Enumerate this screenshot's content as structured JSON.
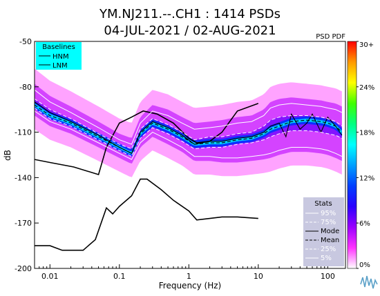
{
  "chart_data": {
    "type": "heatmap",
    "title_line1": "YM.NJ211.--.CH1 : 1414 PSDs",
    "title_line2": "04-JUL-2021 / 02-AUG-2021",
    "xlabel": "Frequency (Hz)",
    "ylabel": "dB",
    "x_scale": "log",
    "xlim": [
      0.006,
      180
    ],
    "ylim": [
      -200,
      -50
    ],
    "x_ticks": [
      {
        "value": 0.01,
        "label": "0.01"
      },
      {
        "value": 0.1,
        "label": "0.1"
      },
      {
        "value": 1,
        "label": "1"
      },
      {
        "value": 10,
        "label": "10"
      },
      {
        "value": 100,
        "label": "100"
      }
    ],
    "y_ticks": [
      {
        "value": -50,
        "label": "-50"
      },
      {
        "value": -80,
        "label": "-80"
      },
      {
        "value": -110,
        "label": "-110"
      },
      {
        "value": -140,
        "label": "-140"
      },
      {
        "value": -170,
        "label": "-170"
      },
      {
        "value": -200,
        "label": "-200"
      }
    ],
    "colorbar": {
      "title": "PSD PDF",
      "range": [
        0,
        30
      ],
      "ticks": [
        {
          "value": 30,
          "label": "30+"
        },
        {
          "value": 24,
          "label": "24%"
        },
        {
          "value": 18,
          "label": "18%"
        },
        {
          "value": 12,
          "label": "12%"
        },
        {
          "value": 6,
          "label": "6%"
        },
        {
          "value": 0,
          "label": "0%"
        }
      ],
      "colors": [
        "#ffffff",
        "#ff33ff",
        "#9a00ff",
        "#2a00ff",
        "#0040ff",
        "#00a0ff",
        "#00ffff",
        "#00ff80",
        "#40ff00",
        "#ffff00",
        "#ff9900",
        "#ff0000"
      ]
    },
    "baselines_legend": {
      "title": "Baselines",
      "entries": [
        "HNM",
        "LNM"
      ],
      "background": "#00ffff"
    },
    "stats_legend": {
      "title": "Stats",
      "entries": [
        "95%",
        "75%",
        "Mode",
        "Mean",
        "25%",
        "5%"
      ],
      "background": "#c8c8e0"
    },
    "series": [
      {
        "name": "HNM",
        "x": [
          0.006,
          0.01,
          0.022,
          0.05,
          0.065,
          0.1,
          0.15,
          0.22,
          0.35,
          0.6,
          1.0,
          1.3,
          2.0,
          3.0,
          5.0,
          10.0
        ],
        "y": [
          -128,
          -130,
          -133,
          -138,
          -120,
          -104,
          -100,
          -96,
          -98,
          -104,
          -114,
          -117,
          -116,
          -110,
          -96,
          -91
        ]
      },
      {
        "name": "LNM",
        "x": [
          0.006,
          0.01,
          0.015,
          0.03,
          0.045,
          0.065,
          0.08,
          0.1,
          0.15,
          0.2,
          0.25,
          0.4,
          0.6,
          1.0,
          1.3,
          2.0,
          3.0,
          5.0,
          10.0
        ],
        "y": [
          -185,
          -185,
          -188,
          -188,
          -181,
          -160,
          -164,
          -159,
          -152,
          -141,
          -141,
          -148,
          -155,
          -162,
          -168,
          -167,
          -166,
          -166,
          -167
        ]
      },
      {
        "name": "Mode",
        "x": [
          0.006,
          0.01,
          0.02,
          0.05,
          0.1,
          0.15,
          0.2,
          0.3,
          0.5,
          0.8,
          1.2,
          2,
          3,
          5,
          8,
          12,
          15,
          20,
          25,
          30,
          40,
          50,
          60,
          80,
          100,
          130,
          160
        ],
        "y": [
          -90,
          -97,
          -103,
          -112,
          -120,
          -124,
          -110,
          -103,
          -107,
          -112,
          -118,
          -116,
          -116,
          -114,
          -113,
          -110,
          -106,
          -104,
          -113,
          -98,
          -108,
          -104,
          -98,
          -110,
          -100,
          -106,
          -112
        ]
      },
      {
        "name": "Mean",
        "x": [
          0.006,
          0.01,
          0.02,
          0.05,
          0.1,
          0.15,
          0.2,
          0.3,
          0.5,
          0.8,
          1.2,
          2,
          3,
          5,
          8,
          12,
          15,
          20,
          30,
          50,
          80,
          100,
          130,
          160
        ],
        "y": [
          -92,
          -99,
          -104,
          -113,
          -120,
          -124,
          -111,
          -104,
          -108,
          -113,
          -118,
          -117,
          -117,
          -115,
          -114,
          -111,
          -108,
          -106,
          -103,
          -102,
          -103,
          -104,
          -106,
          -110
        ]
      },
      {
        "name": "95%",
        "x": [
          0.006,
          0.01,
          0.02,
          0.05,
          0.1,
          0.15,
          0.2,
          0.3,
          0.5,
          0.8,
          1.2,
          2,
          3,
          5,
          8,
          12,
          15,
          20,
          30,
          50,
          80,
          100,
          130,
          160
        ],
        "y": [
          -82,
          -90,
          -97,
          -107,
          -115,
          -118,
          -104,
          -96,
          -99,
          -104,
          -108,
          -107,
          -106,
          -104,
          -103,
          -99,
          -94,
          -92,
          -91,
          -92,
          -93,
          -94,
          -95,
          -97
        ]
      },
      {
        "name": "75%",
        "x": [
          0.006,
          0.01,
          0.02,
          0.05,
          0.1,
          0.15,
          0.2,
          0.3,
          0.5,
          0.8,
          1.2,
          2,
          3,
          5,
          8,
          12,
          15,
          20,
          30,
          50,
          80,
          100,
          130,
          160
        ],
        "y": [
          -88,
          -95,
          -101,
          -111,
          -118,
          -121,
          -108,
          -101,
          -105,
          -110,
          -115,
          -113,
          -113,
          -111,
          -110,
          -106,
          -102,
          -100,
          -99,
          -99,
          -100,
          -101,
          -103,
          -106
        ]
      },
      {
        "name": "25%",
        "x": [
          0.006,
          0.01,
          0.02,
          0.05,
          0.1,
          0.15,
          0.2,
          0.3,
          0.5,
          0.8,
          1.2,
          2,
          3,
          5,
          8,
          12,
          15,
          20,
          30,
          50,
          80,
          100,
          130,
          160
        ],
        "y": [
          -94,
          -101,
          -106,
          -115,
          -122,
          -126,
          -114,
          -107,
          -111,
          -116,
          -121,
          -120,
          -120,
          -118,
          -117,
          -115,
          -113,
          -111,
          -109,
          -109,
          -110,
          -111,
          -112,
          -114
        ]
      },
      {
        "name": "5%",
        "x": [
          0.006,
          0.01,
          0.02,
          0.05,
          0.1,
          0.15,
          0.2,
          0.3,
          0.5,
          0.8,
          1.2,
          2,
          3,
          5,
          8,
          12,
          15,
          20,
          30,
          50,
          80,
          100,
          130,
          160
        ],
        "y": [
          -96,
          -103,
          -108,
          -117,
          -124,
          -128,
          -117,
          -110,
          -115,
          -120,
          -126,
          -126,
          -127,
          -127,
          -126,
          -125,
          -124,
          -122,
          -120,
          -120,
          -121,
          -122,
          -124,
          -126
        ]
      }
    ]
  }
}
